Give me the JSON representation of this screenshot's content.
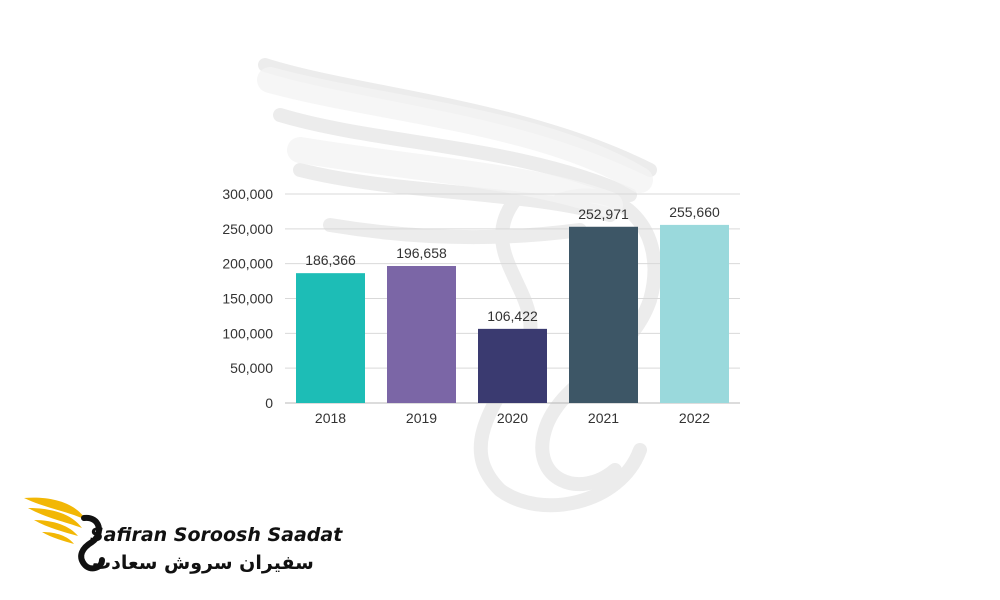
{
  "chart_data": {
    "type": "bar",
    "categories": [
      "2018",
      "2019",
      "2020",
      "2021",
      "2022"
    ],
    "values": [
      186366,
      196658,
      106422,
      252971,
      255660
    ],
    "value_labels": [
      "186,366",
      "196,658",
      "106,422",
      "252,971",
      "255,660"
    ],
    "bar_colors": [
      "#1dbdb6",
      "#7b66a6",
      "#3a3a70",
      "#3d5666",
      "#9ad9dc"
    ],
    "title": "",
    "xlabel": "",
    "ylabel": "",
    "ylim": [
      0,
      300000
    ],
    "yticks": [
      0,
      50000,
      100000,
      150000,
      200000,
      250000,
      300000
    ],
    "ytick_labels": [
      "0",
      "50,000",
      "100,000",
      "150,000",
      "200,000",
      "250,000",
      "300,000"
    ],
    "grid": true,
    "legend": "none"
  },
  "logo": {
    "name_en": "Safiran Soroosh Saadat",
    "name_fa": "سفیران سروش سعادت",
    "icon": "golden-wing-icon",
    "colors": {
      "wing": "#f2b705",
      "swan": "#111111"
    }
  },
  "watermark": {
    "icon": "swan-wing-watermark-icon"
  }
}
